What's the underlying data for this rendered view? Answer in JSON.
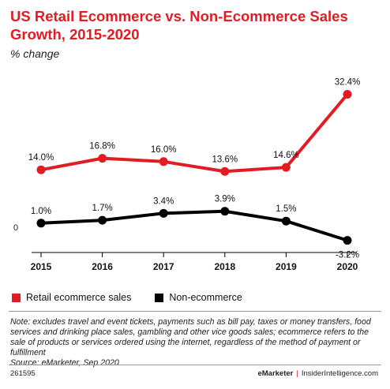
{
  "title": "US Retail Ecommerce vs. Non-Ecommerce Sales Growth, 2015-2020",
  "subtitle": "% change",
  "chart_data": {
    "type": "line",
    "x": [
      "2015",
      "2016",
      "2017",
      "2018",
      "2019",
      "2020"
    ],
    "series": [
      {
        "name": "Retail ecommerce sales",
        "color": "#e31b23",
        "values": [
          14.0,
          16.8,
          16.0,
          13.6,
          14.6,
          32.4
        ],
        "labels": [
          "14.0%",
          "16.8%",
          "16.0%",
          "13.6%",
          "14.6%",
          "32.4%"
        ]
      },
      {
        "name": "Non-ecommerce",
        "color": "#000000",
        "values": [
          1.0,
          1.7,
          3.4,
          3.9,
          1.5,
          -3.2
        ],
        "labels": [
          "1.0%",
          "1.7%",
          "3.4%",
          "3.9%",
          "1.5%",
          "-3.2%"
        ]
      }
    ],
    "y_tick_label": "0",
    "legend_position": "bottom-left"
  },
  "note": "Note: excludes travel and event tickets, payments such as bill pay, taxes or money transfers, food services and drinking place sales, gambling and other vice goods sales; ecommerce refers to the sale of products or services ordered using the internet, regardless of the method of payment or fulfillment",
  "source": "Source: eMarketer, Sep 2020",
  "footer": {
    "chart_id": "261595",
    "brand_left": "eMarketer",
    "separator": "|",
    "brand_right": "InsiderIntelligence.com"
  }
}
